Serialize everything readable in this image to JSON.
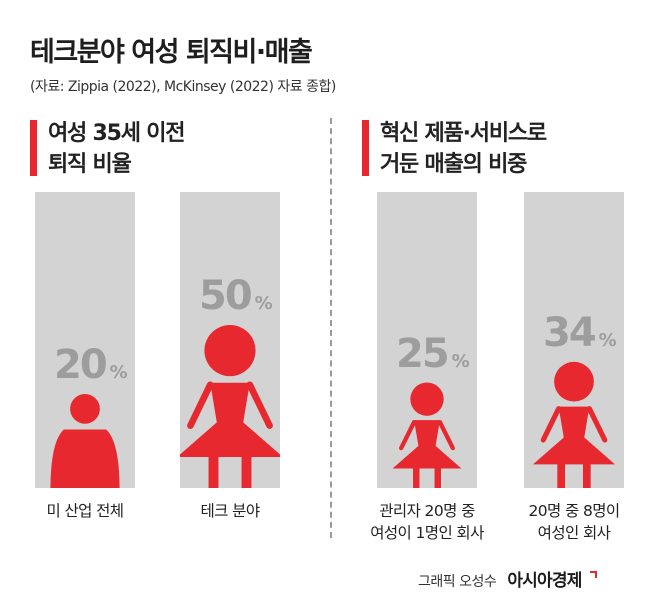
{
  "title": "테크분야 여성 퇴직비·매출",
  "source": "(자료: Zippia (2022), McKinsey (2022) 자료 종합)",
  "credit": {
    "byline": "그래픽 오성수",
    "brand": "아시아경제"
  },
  "colors": {
    "accent": "#e8282f",
    "column_bg": "#d3d3d3",
    "percent_text": "#9d9d9d"
  },
  "chart_data": [
    {
      "type": "bar",
      "title_lines": [
        "여성 35세 이전",
        "퇴직 비율"
      ],
      "categories": [
        "미 산업 전체",
        "테크 분야"
      ],
      "caption_lines": [
        [
          "미 산업 전체"
        ],
        [
          "테크 분야"
        ]
      ],
      "values": [
        20,
        50
      ],
      "unit": "%",
      "marker_icon": [
        "person-icon",
        "woman-icon"
      ],
      "ylim": [
        0,
        100
      ]
    },
    {
      "type": "bar",
      "title_lines": [
        "혁신 제품·서비스로",
        "거둔 매출의 비중"
      ],
      "categories": [
        "관리자 20명 중 여성이 1명인 회사",
        "20명 중 8명이 여성인 회사"
      ],
      "caption_lines": [
        [
          "관리자 20명 중",
          "여성이 1명인 회사"
        ],
        [
          "20명 중 8명이",
          "여성인 회사"
        ]
      ],
      "values": [
        25,
        34
      ],
      "unit": "%",
      "marker_icon": [
        "woman-icon",
        "woman-icon"
      ],
      "ylim": [
        0,
        100
      ]
    }
  ]
}
